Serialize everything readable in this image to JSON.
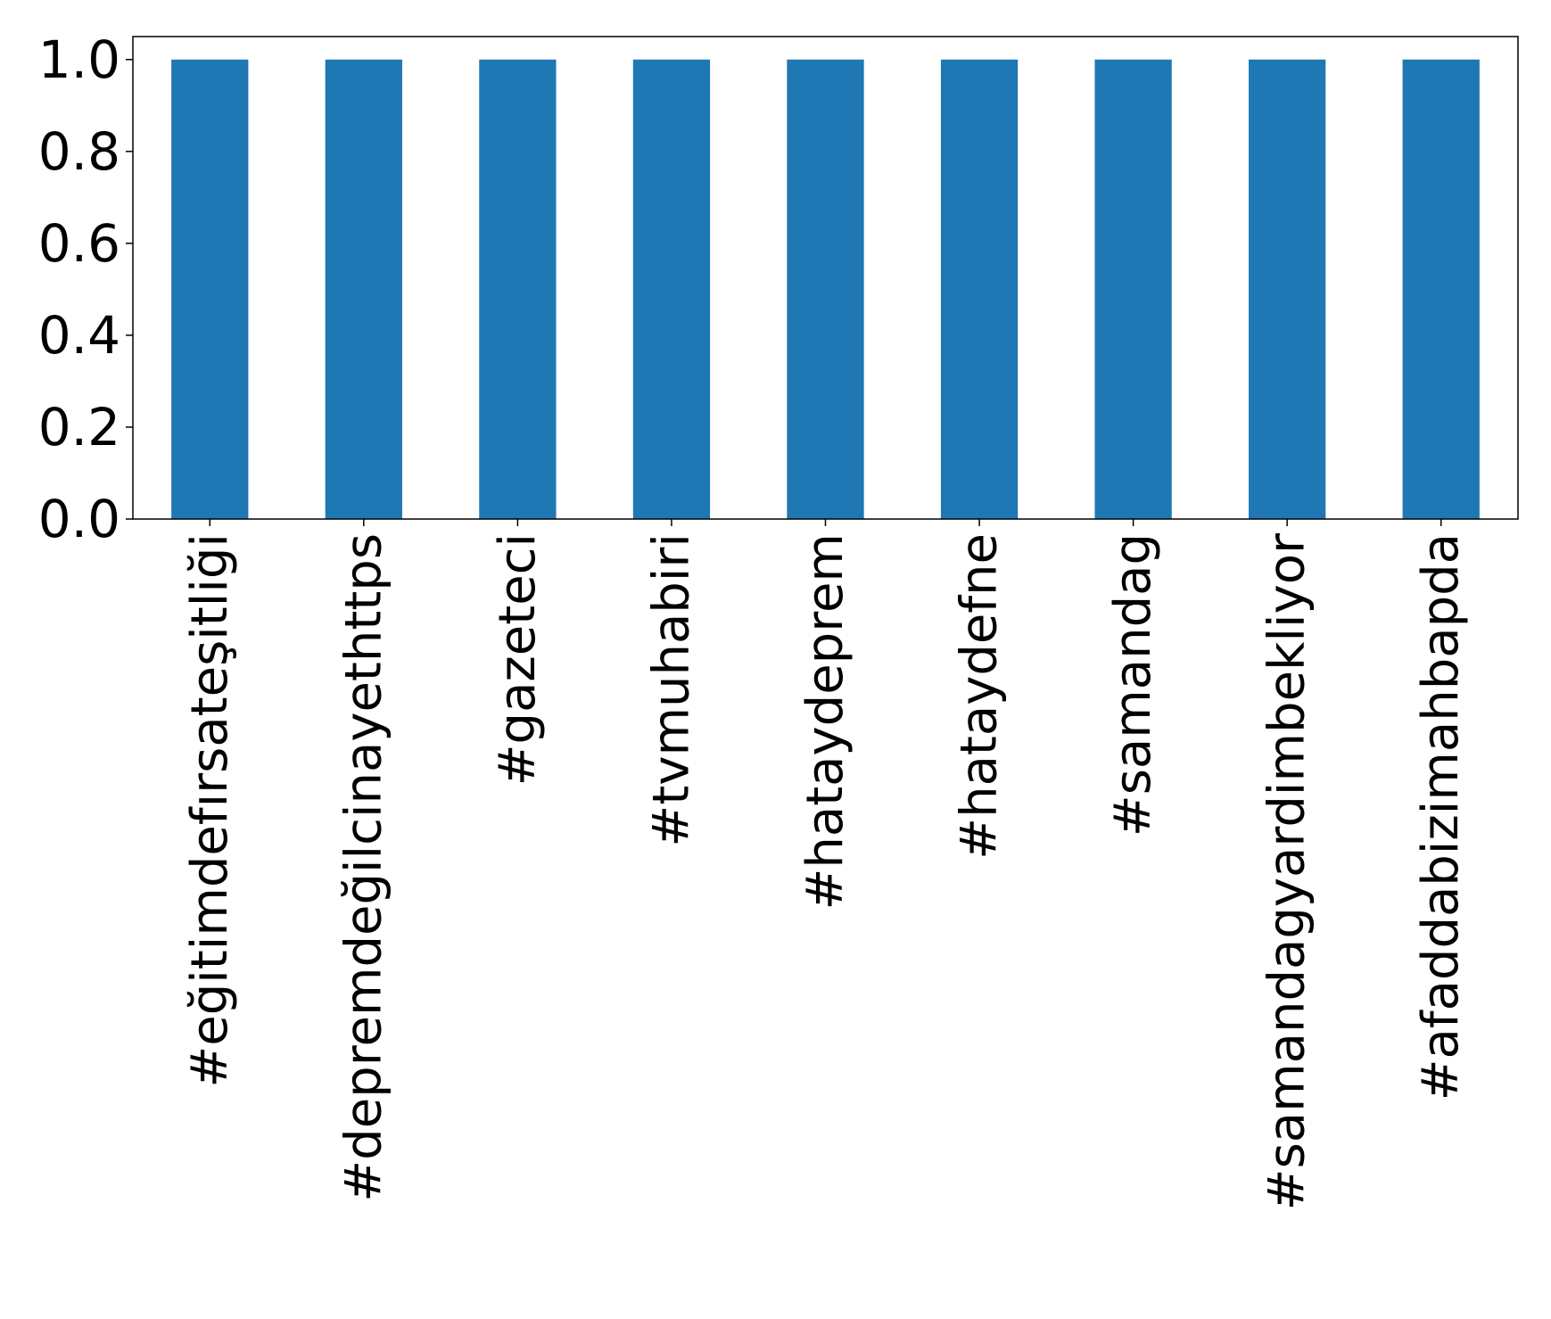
{
  "chart_data": {
    "type": "bar",
    "title": "",
    "xlabel": "",
    "ylabel": "",
    "categories": [
      "#eğitimdefırsateşitliği",
      "#depremdeğilcinayethttps",
      "#gazeteci",
      "#tvmuhabiri",
      "#hataydeprem",
      "#hataydefne",
      "#samandag",
      "#samandagyardimbekliyor",
      "#afaddabizimahbapda"
    ],
    "values": [
      1.0,
      1.0,
      1.0,
      1.0,
      1.0,
      1.0,
      1.0,
      1.0,
      1.0
    ],
    "ylim": [
      0,
      1.05
    ],
    "yticks": [
      "0.0",
      "0.2",
      "0.4",
      "0.6",
      "0.8",
      "1.0"
    ],
    "grid": false,
    "legend": "none",
    "bar_color": "#1f77b4"
  }
}
